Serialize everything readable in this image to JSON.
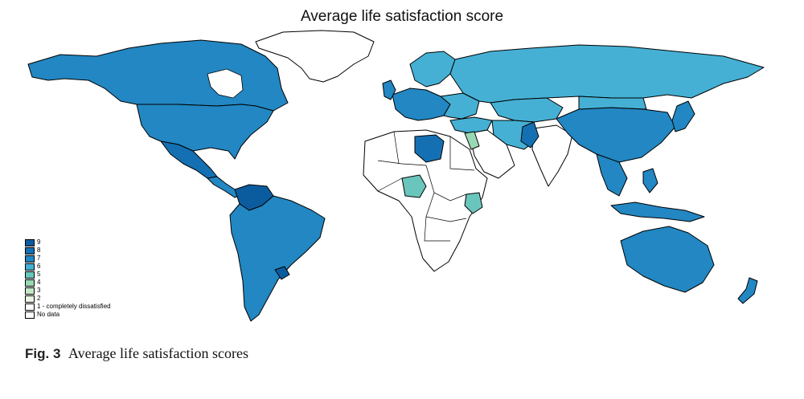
{
  "map": {
    "title": "Average life satisfaction score",
    "colors": {
      "s9": "#0b5c9e",
      "s8": "#1470b2",
      "s7": "#2287c2",
      "s6": "#45b0d4",
      "s5": "#6ac6bd",
      "s4": "#98d8b3",
      "s3": "#c4e8c6",
      "s2": "#e9f6e6",
      "s1": "#ffffff",
      "nodata": "#ffffff",
      "border": "#000000"
    },
    "legend": [
      {
        "label": "9",
        "color": "#0b5c9e"
      },
      {
        "label": "8",
        "color": "#1470b2"
      },
      {
        "label": "7",
        "color": "#2287c2"
      },
      {
        "label": "6",
        "color": "#45b0d4"
      },
      {
        "label": "5",
        "color": "#6ac6bd"
      },
      {
        "label": "4",
        "color": "#98d8b3"
      },
      {
        "label": "3",
        "color": "#c4e8c6"
      },
      {
        "label": "2",
        "color": "#e9f6e6"
      },
      {
        "label": "1 - completely dissatisfied",
        "color": "#ffffff"
      },
      {
        "label": "No data",
        "color": "#ffffff"
      }
    ]
  },
  "caption": {
    "label": "Fig. 3",
    "text": "Average life satisfaction scores"
  }
}
